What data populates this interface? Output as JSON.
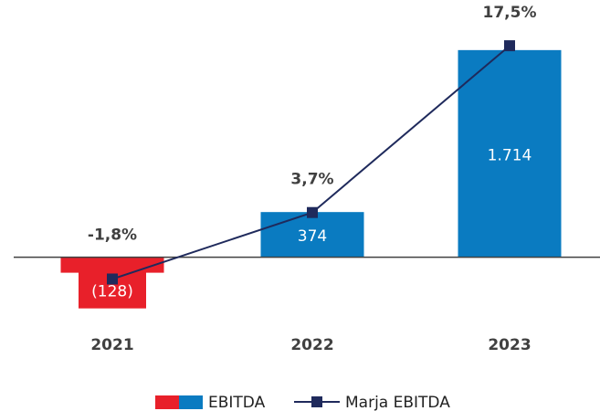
{
  "chart_data": {
    "type": "bar_line",
    "categories": [
      "2021",
      "2022",
      "2023"
    ],
    "series": [
      {
        "name": "EBITDA",
        "type": "bar",
        "color": "#0a7bc1",
        "negative_color": "#e8202a",
        "values": [
          -128,
          374,
          1714
        ],
        "value_labels": [
          "(128)",
          "374",
          "1.714"
        ]
      },
      {
        "name": "Marja EBITDA",
        "type": "line",
        "axis": "y2",
        "color": "#1f2a5c",
        "values": [
          -1.8,
          3.7,
          17.5
        ],
        "value_labels": [
          "-1,8%",
          "3,7%",
          "17,5%"
        ]
      }
    ],
    "ylim": [
      -1000,
      2000
    ],
    "y2lim": [
      -10,
      20
    ],
    "legend": "bottom"
  }
}
